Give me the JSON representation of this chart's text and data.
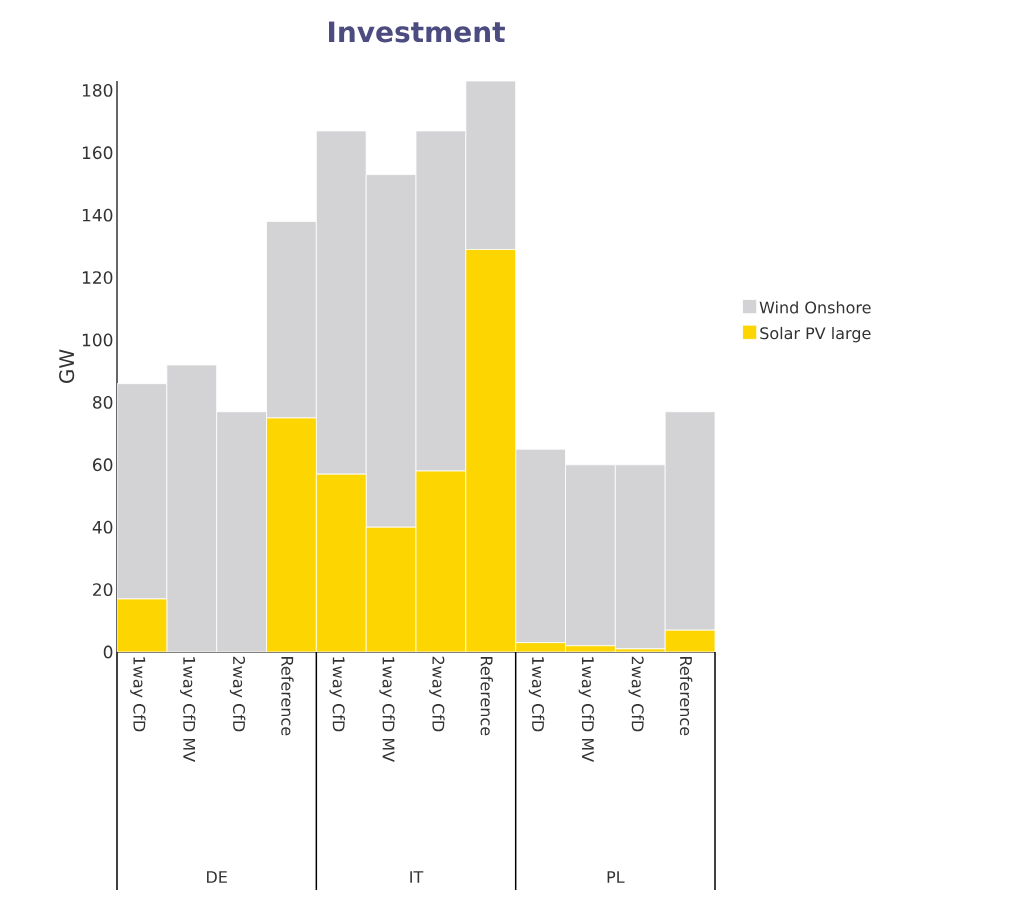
{
  "chart_data": {
    "type": "bar",
    "title": "Investment",
    "ylabel": "GW",
    "stacked": true,
    "categories": [
      "1way CfD",
      "1way CfD MV",
      "2way CfD",
      "Reference",
      "1way CfD",
      "1way CfD MV",
      "2way CfD",
      "Reference",
      "1way CfD",
      "1way CfD MV",
      "2way CfD",
      "Reference"
    ],
    "series": [
      {
        "name": "Solar PV large",
        "color": "#fdd500",
        "values": [
          17,
          0,
          0,
          75,
          57,
          40,
          58,
          129,
          3,
          2,
          1,
          7
        ]
      },
      {
        "name": "Wind Onshore",
        "color": "#d3d3d5",
        "values": [
          69,
          92,
          77,
          63,
          110,
          113,
          109,
          54,
          62,
          58,
          59,
          70
        ]
      }
    ],
    "annotations": [
      "DE",
      "IT",
      "PL"
    ],
    "ylim": [
      0,
      183
    ],
    "yticks": [
      0,
      20,
      40,
      60,
      80,
      100,
      120,
      140,
      160,
      180
    ],
    "grid": false,
    "legend": "right"
  }
}
